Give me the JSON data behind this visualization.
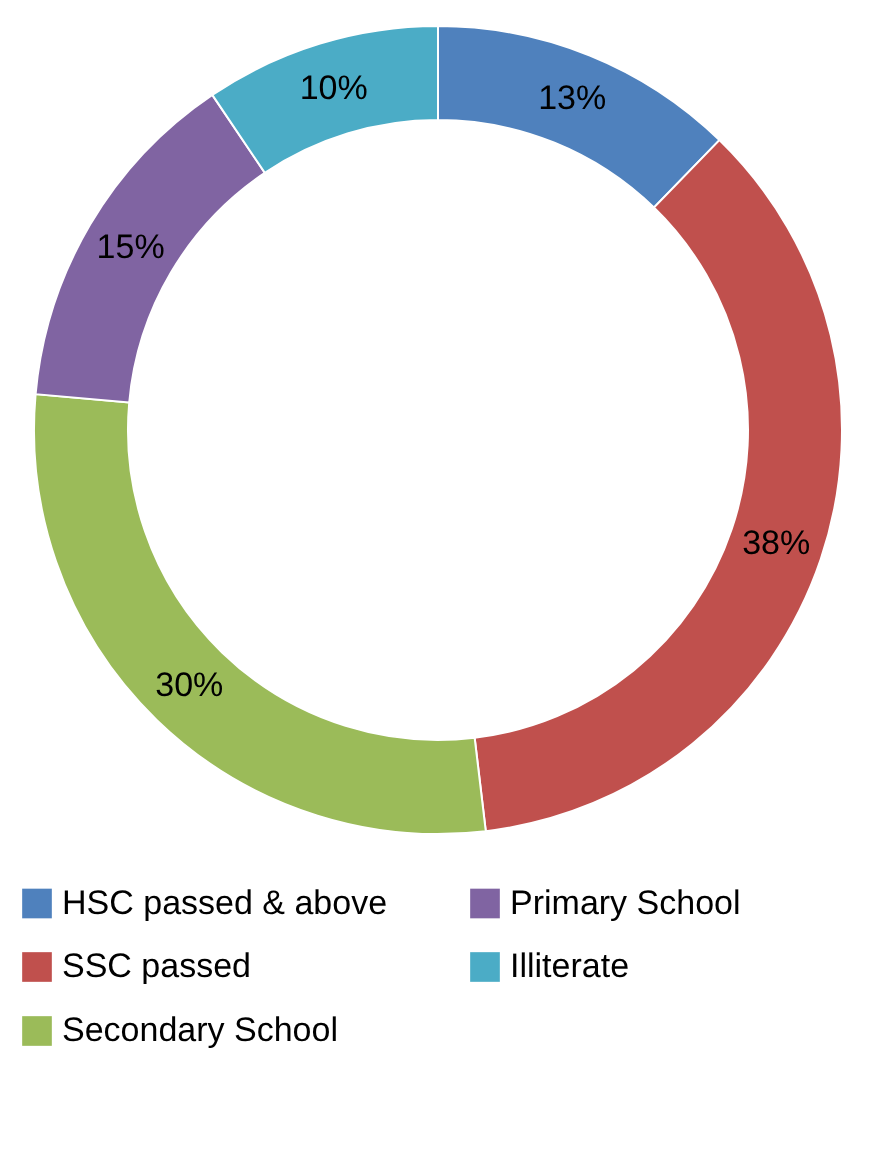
{
  "chart_data": {
    "type": "donut",
    "categories": [
      "HSC passed & above",
      "SSC passed",
      "Secondary School",
      "Primary School",
      "Illiterate"
    ],
    "values": [
      13,
      38,
      30,
      15,
      10
    ],
    "value_labels": [
      "13%",
      "38%",
      "30%",
      "15%",
      "10%"
    ],
    "colors": [
      "#4f81bd",
      "#c0504d",
      "#9bbb59",
      "#8064a2",
      "#4bacc6"
    ],
    "legend": "bottom"
  }
}
